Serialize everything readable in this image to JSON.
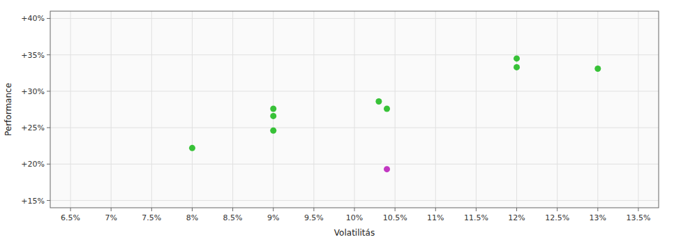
{
  "chart_data": {
    "type": "scatter",
    "xlabel": "Volatilitás",
    "ylabel": "Performance",
    "xlim": [
      0.0625,
      0.1375
    ],
    "ylim": [
      0.14,
      0.41
    ],
    "xticks": [
      {
        "value": 0.065,
        "label": "6.5%"
      },
      {
        "value": 0.07,
        "label": "7%"
      },
      {
        "value": 0.075,
        "label": "7.5%"
      },
      {
        "value": 0.08,
        "label": "8%"
      },
      {
        "value": 0.085,
        "label": "8.5%"
      },
      {
        "value": 0.09,
        "label": "9%"
      },
      {
        "value": 0.095,
        "label": "9.5%"
      },
      {
        "value": 0.1,
        "label": "10%"
      },
      {
        "value": 0.105,
        "label": "10.5%"
      },
      {
        "value": 0.11,
        "label": "11%"
      },
      {
        "value": 0.115,
        "label": "11.5%"
      },
      {
        "value": 0.12,
        "label": "12%"
      },
      {
        "value": 0.125,
        "label": "12.5%"
      },
      {
        "value": 0.13,
        "label": "13%"
      },
      {
        "value": 0.135,
        "label": "13.5%"
      }
    ],
    "yticks": [
      {
        "value": 0.15,
        "label": "+15%"
      },
      {
        "value": 0.2,
        "label": "+20%"
      },
      {
        "value": 0.25,
        "label": "+25%"
      },
      {
        "value": 0.3,
        "label": "+30%"
      },
      {
        "value": 0.35,
        "label": "+35%"
      },
      {
        "value": 0.4,
        "label": "+40%"
      }
    ],
    "grid": true,
    "series": [
      {
        "color": "#22bb22",
        "x": [
          0.08,
          0.09,
          0.09,
          0.09,
          0.103,
          0.104,
          0.12,
          0.12,
          0.13
        ],
        "values": [
          0.222,
          0.276,
          0.266,
          0.246,
          0.286,
          0.276,
          0.345,
          0.333,
          0.331
        ]
      },
      {
        "color": "#bb22bb",
        "x": [
          0.104
        ],
        "values": [
          0.193
        ]
      }
    ]
  }
}
